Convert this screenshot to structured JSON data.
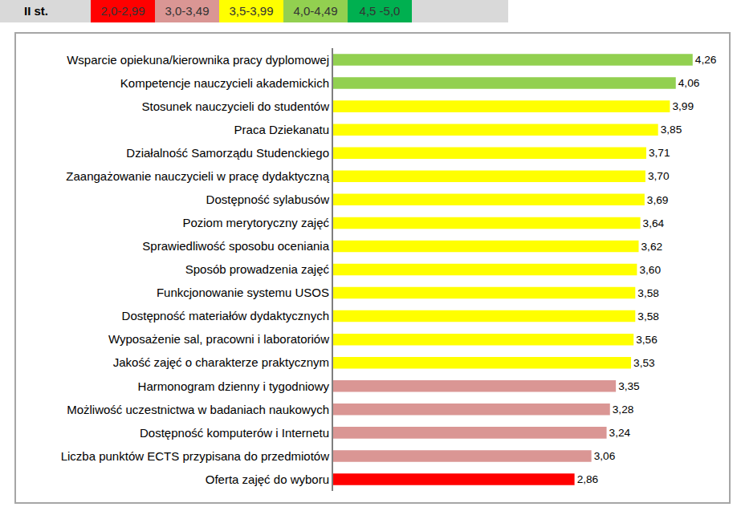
{
  "chart_data": {
    "type": "bar",
    "orientation": "horizontal",
    "title": "II st.",
    "legend": "top",
    "data_labels": true,
    "tick_labels": "y",
    "xlim": [
      0,
      4.5
    ],
    "categories": [
      "Wsparcie opiekuna/kierownika pracy dyplomowej",
      "Kompetencje nauczycieli akademickich",
      "Stosunek nauczycieli do studentów",
      "Praca Dziekanatu",
      "Działalność Samorządu Studenckiego",
      "Zaangażowanie nauczycieli w pracę dydaktyczną",
      "Dostępność sylabusów",
      "Poziom merytoryczny zajęć",
      "Sprawiedliwość sposobu oceniania",
      "Sposób prowadzenia zajęć",
      "Funkcjonowanie systemu USOS",
      "Dostępność materiałów dydaktycznych",
      "Wyposażenie sal, pracowni i laboratoriów",
      "Jakość zajęć o charakterze praktycznym",
      "Harmonogram dzienny i tygodniowy",
      "Możliwość uczestnictwa w badaniach naukowych",
      "Dostępność komputerów i Internetu",
      "Liczba punktów ECTS przypisana do przedmiotów",
      "Oferta zajęć do wyboru"
    ],
    "series": [
      {
        "name": "2,0-2,99",
        "color": "#ff0000",
        "values": [
          null,
          null,
          null,
          null,
          null,
          null,
          null,
          null,
          null,
          null,
          null,
          null,
          null,
          null,
          null,
          null,
          null,
          null,
          2.86
        ],
        "value_labels": [
          null,
          null,
          null,
          null,
          null,
          null,
          null,
          null,
          null,
          null,
          null,
          null,
          null,
          null,
          null,
          null,
          null,
          null,
          "2,86"
        ]
      },
      {
        "name": "3,0-3,49",
        "color": "#da9694",
        "values": [
          null,
          null,
          null,
          null,
          null,
          null,
          null,
          null,
          null,
          null,
          null,
          null,
          null,
          null,
          3.35,
          3.28,
          3.24,
          3.06,
          null
        ],
        "value_labels": [
          null,
          null,
          null,
          null,
          null,
          null,
          null,
          null,
          null,
          null,
          null,
          null,
          null,
          null,
          "3,35",
          "3,28",
          "3,24",
          "3,06",
          null
        ]
      },
      {
        "name": "3,5-3,99",
        "color": "#ffff00",
        "values": [
          null,
          null,
          3.99,
          3.85,
          3.71,
          3.7,
          3.69,
          3.64,
          3.62,
          3.6,
          3.58,
          3.58,
          3.56,
          3.53,
          null,
          null,
          null,
          null,
          null
        ],
        "value_labels": [
          null,
          null,
          "3,99",
          "3,85",
          "3,71",
          "3,70",
          "3,69",
          "3,64",
          "3,62",
          "3,60",
          "3,58",
          "3,58",
          "3,56",
          "3,53",
          null,
          null,
          null,
          null,
          null
        ]
      },
      {
        "name": "4,0-4,49",
        "color": "#92d050",
        "values": [
          4.26,
          4.06,
          null,
          null,
          null,
          null,
          null,
          null,
          null,
          null,
          null,
          null,
          null,
          null,
          null,
          null,
          null,
          null,
          null
        ],
        "value_labels": [
          "4,26",
          "4,06",
          null,
          null,
          null,
          null,
          null,
          null,
          null,
          null,
          null,
          null,
          null,
          null,
          null,
          null,
          null,
          null,
          null
        ]
      },
      {
        "name": "4,5 -5,0",
        "color": "#00b050",
        "values": [
          null,
          null,
          null,
          null,
          null,
          null,
          null,
          null,
          null,
          null,
          null,
          null,
          null,
          null,
          null,
          null,
          null,
          null,
          null
        ],
        "value_labels": [
          null,
          null,
          null,
          null,
          null,
          null,
          null,
          null,
          null,
          null,
          null,
          null,
          null,
          null,
          null,
          null,
          null,
          null,
          null
        ]
      }
    ]
  }
}
